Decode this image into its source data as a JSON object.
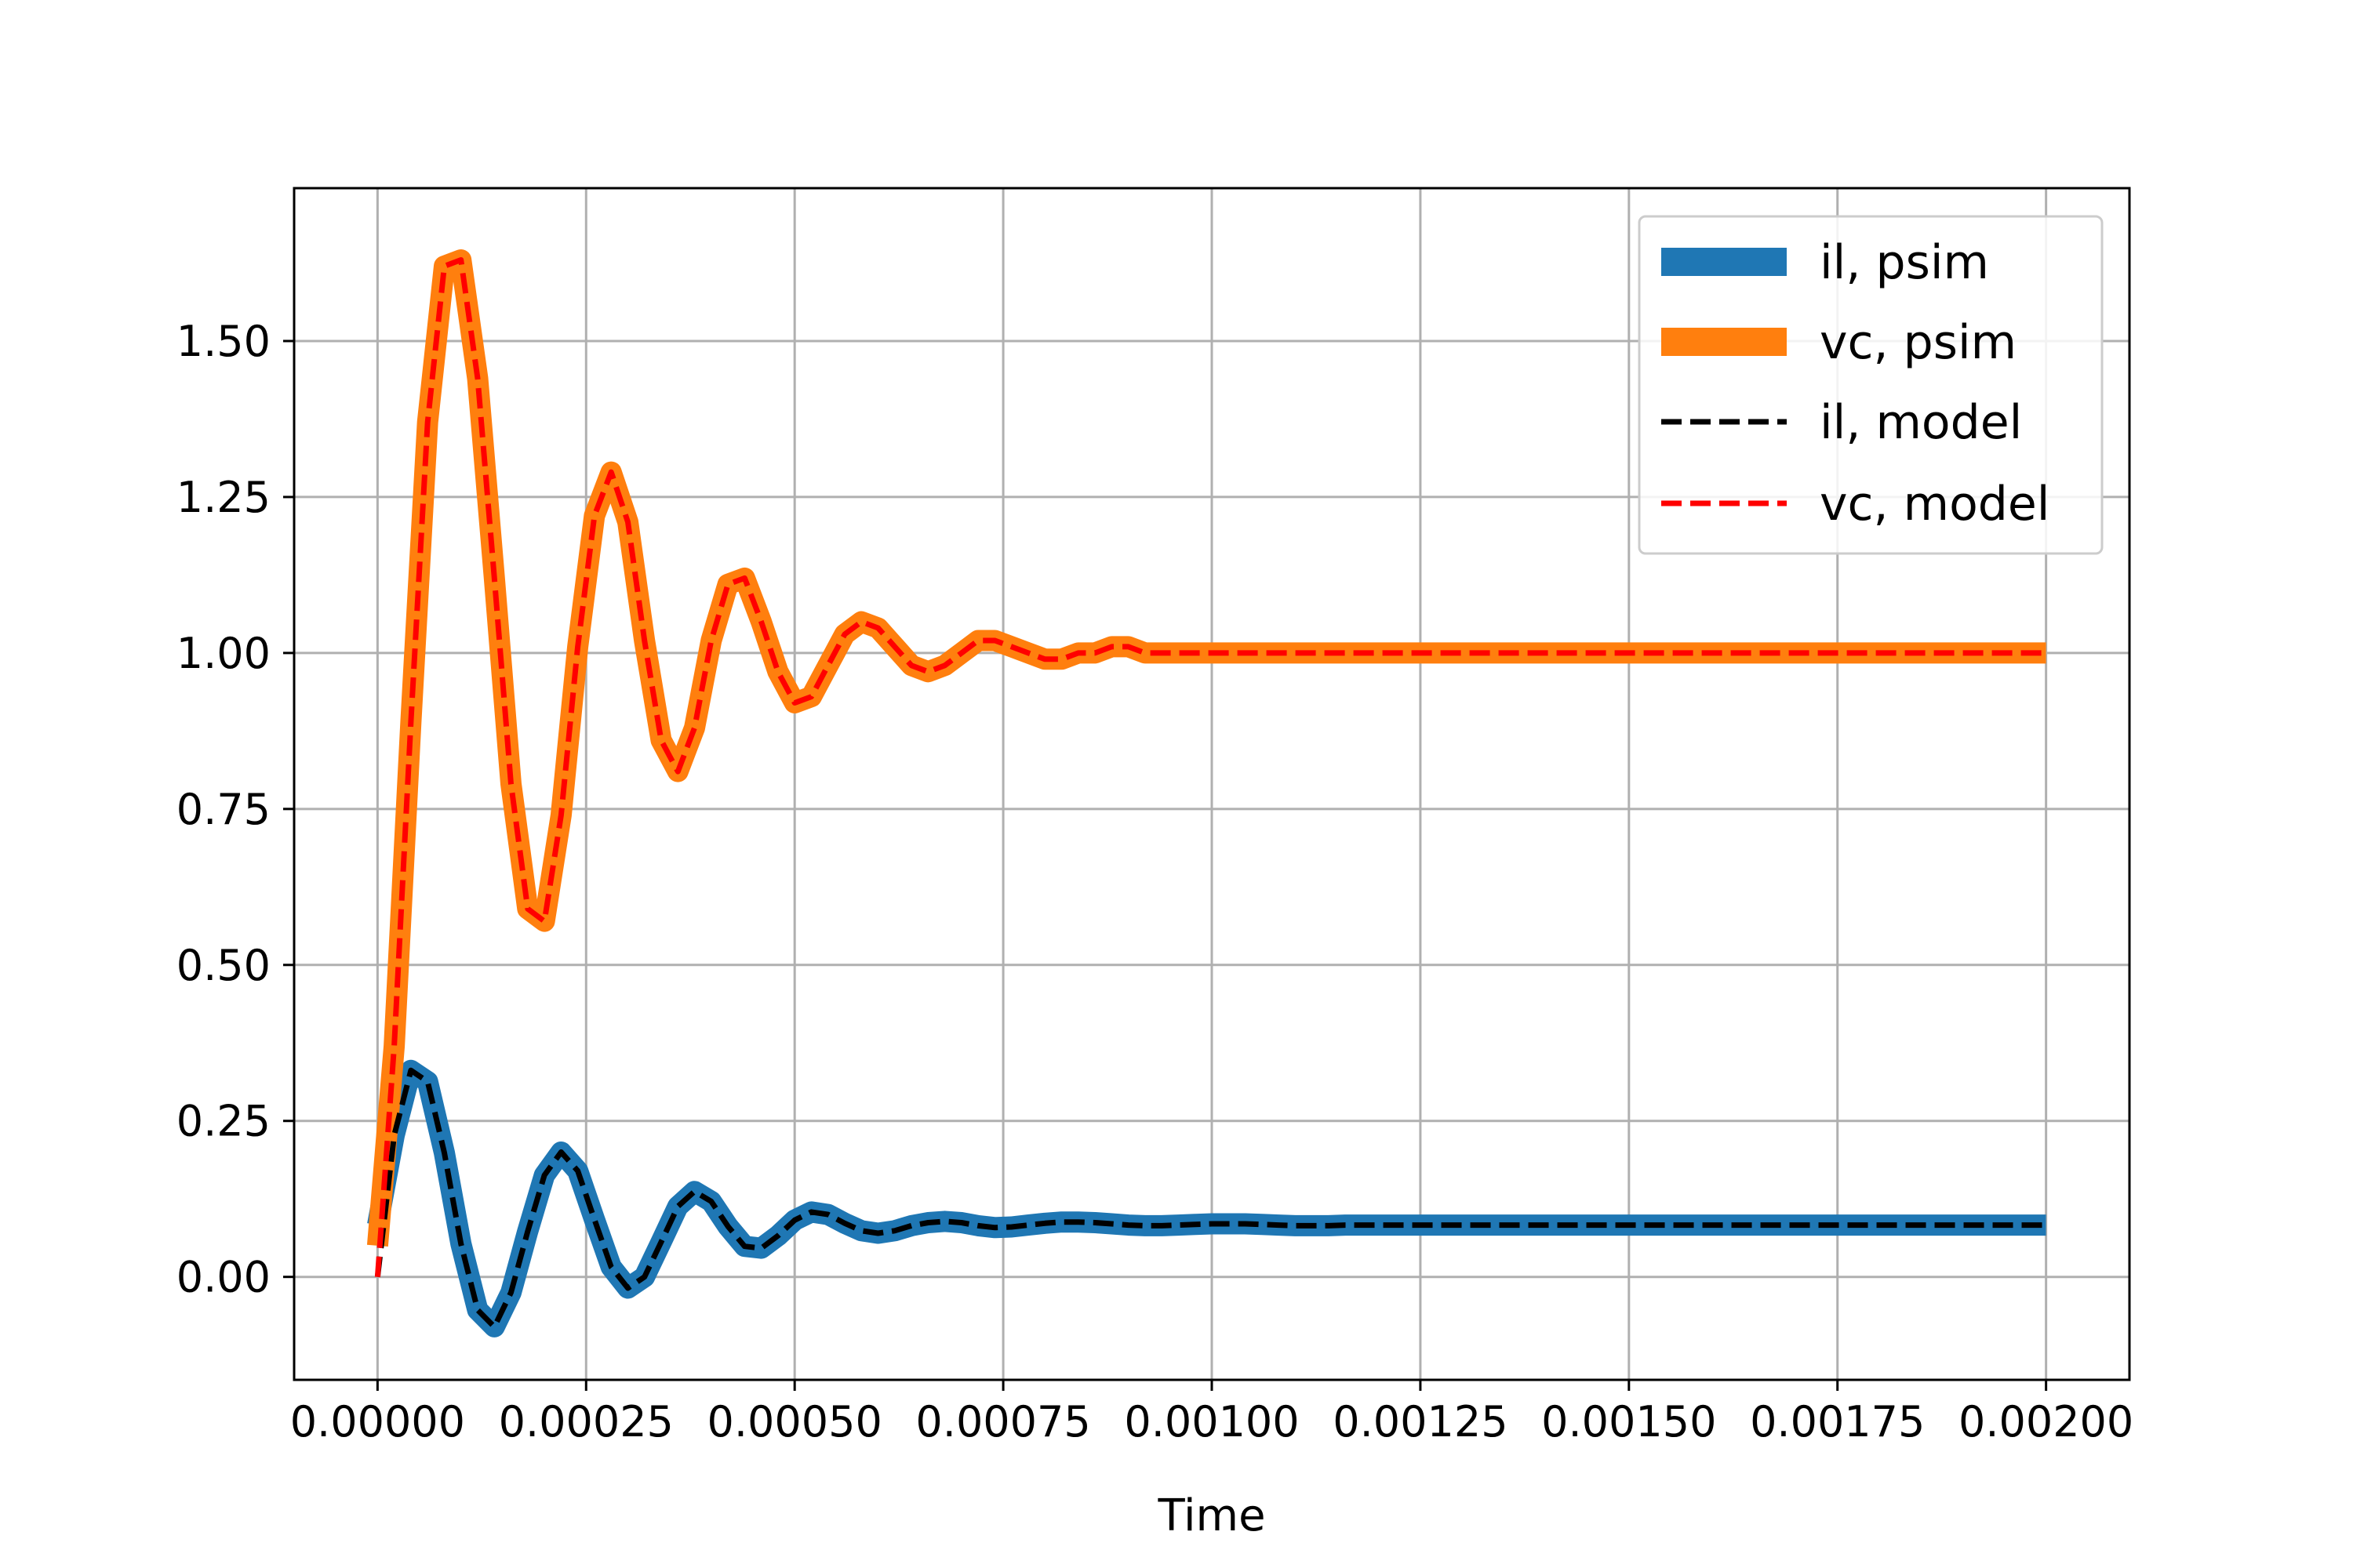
{
  "chart_data": {
    "type": "line",
    "title": "",
    "xlabel": "Time",
    "ylabel": "",
    "xlim": [
      -0.0001,
      0.0021
    ],
    "ylim": [
      -0.165,
      1.745
    ],
    "grid": true,
    "legend_position": "upper right",
    "x_ticks": [
      0,
      0.00025,
      0.0005,
      0.00075,
      0.001,
      0.00125,
      0.0015,
      0.00175,
      0.002
    ],
    "x_tick_labels": [
      "0.00000",
      "0.00025",
      "0.00050",
      "0.00075",
      "0.00100",
      "0.00125",
      "0.00150",
      "0.00175",
      "0.00200"
    ],
    "y_ticks": [
      0,
      0.25,
      0.5,
      0.75,
      1.0,
      1.25,
      1.5
    ],
    "y_tick_labels": [
      "0.00",
      "0.25",
      "0.50",
      "0.75",
      "1.00",
      "1.25",
      "1.50"
    ],
    "x": [
      0,
      2e-05,
      4e-05,
      6e-05,
      8e-05,
      0.0001,
      0.00012,
      0.00014,
      0.00016,
      0.00018,
      0.0002,
      0.00022,
      0.00024,
      0.00026,
      0.00028,
      0.0003,
      0.00032,
      0.00034,
      0.00036,
      0.00038,
      0.0004,
      0.00042,
      0.00044,
      0.00046,
      0.00048,
      0.0005,
      0.00052,
      0.00054,
      0.00056,
      0.00058,
      0.0006,
      0.00062,
      0.00064,
      0.00066,
      0.00068,
      0.0007,
      0.00072,
      0.00074,
      0.00076,
      0.00078,
      0.0008,
      0.00082,
      0.00084,
      0.00086,
      0.00088,
      0.0009,
      0.00092,
      0.00094,
      0.00096,
      0.00098,
      0.001,
      0.00102,
      0.00104,
      0.00106,
      0.00108,
      0.0011,
      0.00112,
      0.00114,
      0.00116,
      0.00118,
      0.0012,
      0.00122,
      0.00124,
      0.00126,
      0.00128,
      0.0013,
      0.00132,
      0.00134,
      0.00136,
      0.00138,
      0.0014,
      0.00142,
      0.00144,
      0.00146,
      0.00148,
      0.0015,
      0.00152,
      0.00154,
      0.00156,
      0.00158,
      0.0016,
      0.00162,
      0.00164,
      0.00166,
      0.00168,
      0.0017,
      0.00172,
      0.00174,
      0.00176,
      0.00178,
      0.0018,
      0.00182,
      0.00184,
      0.00186,
      0.00188,
      0.0019,
      0.00192,
      0.00194,
      0.00196,
      0.00198,
      0.002
    ],
    "series": [
      {
        "name": "il, psim",
        "color": "#1f77b4",
        "style": "solid-thick",
        "values": [
          0.083,
          0.227,
          0.331,
          0.313,
          0.199,
          0.053,
          -0.053,
          -0.08,
          -0.025,
          0.073,
          0.163,
          0.2,
          0.17,
          0.092,
          0.016,
          -0.018,
          0.0,
          0.056,
          0.113,
          0.137,
          0.121,
          0.081,
          0.049,
          0.046,
          0.066,
          0.091,
          0.104,
          0.1,
          0.086,
          0.074,
          0.07,
          0.074,
          0.082,
          0.087,
          0.089,
          0.087,
          0.082,
          0.079,
          0.08,
          0.083,
          0.086,
          0.088,
          0.088,
          0.087,
          0.085,
          0.083,
          0.082,
          0.082,
          0.083,
          0.084,
          0.085,
          0.085,
          0.085,
          0.084,
          0.083,
          0.082,
          0.082,
          0.082,
          0.083,
          0.083,
          0.083,
          0.083,
          0.083,
          0.083,
          0.083,
          0.083,
          0.083,
          0.083,
          0.083,
          0.083,
          0.083,
          0.083,
          0.083,
          0.083,
          0.083,
          0.083,
          0.083,
          0.083,
          0.083,
          0.083,
          0.083,
          0.083,
          0.083,
          0.083,
          0.083,
          0.083,
          0.083,
          0.083,
          0.083,
          0.083,
          0.083,
          0.083,
          0.083,
          0.083,
          0.083,
          0.083,
          0.083,
          0.083,
          0.083,
          0.083,
          0.083
        ]
      },
      {
        "name": "vc, psim",
        "color": "#ff7f0e",
        "style": "solid-thick",
        "values": [
          0.05,
          0.37,
          0.89,
          1.37,
          1.62,
          1.63,
          1.44,
          1.12,
          0.79,
          0.59,
          0.57,
          0.74,
          1.01,
          1.22,
          1.29,
          1.21,
          1.02,
          0.86,
          0.81,
          0.88,
          1.02,
          1.11,
          1.12,
          1.05,
          0.97,
          0.92,
          0.93,
          0.98,
          1.03,
          1.05,
          1.04,
          1.01,
          0.98,
          0.97,
          0.98,
          1.0,
          1.02,
          1.02,
          1.01,
          1.0,
          0.99,
          0.99,
          1.0,
          1.0,
          1.01,
          1.01,
          1.0,
          1.0,
          1.0,
          1.0,
          1.0,
          1.0,
          1.0,
          1.0,
          1.0,
          1.0,
          1.0,
          1.0,
          1.0,
          1.0,
          1.0,
          1.0,
          1.0,
          1.0,
          1.0,
          1.0,
          1.0,
          1.0,
          1.0,
          1.0,
          1.0,
          1.0,
          1.0,
          1.0,
          1.0,
          1.0,
          1.0,
          1.0,
          1.0,
          1.0,
          1.0,
          1.0,
          1.0,
          1.0,
          1.0,
          1.0,
          1.0,
          1.0,
          1.0,
          1.0,
          1.0,
          1.0,
          1.0,
          1.0,
          1.0,
          1.0,
          1.0,
          1.0,
          1.0,
          1.0,
          1.0
        ]
      },
      {
        "name": "il, model",
        "color": "#000000",
        "style": "dashed",
        "values": [
          0.0,
          0.227,
          0.331,
          0.313,
          0.199,
          0.053,
          -0.053,
          -0.08,
          -0.025,
          0.073,
          0.163,
          0.2,
          0.17,
          0.092,
          0.016,
          -0.018,
          0.0,
          0.056,
          0.113,
          0.137,
          0.121,
          0.081,
          0.049,
          0.046,
          0.066,
          0.091,
          0.104,
          0.1,
          0.086,
          0.074,
          0.07,
          0.074,
          0.082,
          0.087,
          0.089,
          0.087,
          0.082,
          0.079,
          0.08,
          0.083,
          0.086,
          0.088,
          0.088,
          0.087,
          0.085,
          0.083,
          0.082,
          0.082,
          0.083,
          0.084,
          0.085,
          0.085,
          0.085,
          0.084,
          0.083,
          0.082,
          0.082,
          0.082,
          0.083,
          0.083,
          0.083,
          0.083,
          0.083,
          0.083,
          0.083,
          0.083,
          0.083,
          0.083,
          0.083,
          0.083,
          0.083,
          0.083,
          0.083,
          0.083,
          0.083,
          0.083,
          0.083,
          0.083,
          0.083,
          0.083,
          0.083,
          0.083,
          0.083,
          0.083,
          0.083,
          0.083,
          0.083,
          0.083,
          0.083,
          0.083,
          0.083,
          0.083,
          0.083,
          0.083,
          0.083,
          0.083,
          0.083,
          0.083,
          0.083,
          0.083,
          0.083
        ]
      },
      {
        "name": "vc, model",
        "color": "#ff0000",
        "style": "dashed",
        "values": [
          0.0,
          0.37,
          0.89,
          1.37,
          1.62,
          1.63,
          1.44,
          1.12,
          0.79,
          0.59,
          0.57,
          0.74,
          1.01,
          1.22,
          1.29,
          1.21,
          1.02,
          0.86,
          0.81,
          0.88,
          1.02,
          1.11,
          1.12,
          1.05,
          0.97,
          0.92,
          0.93,
          0.98,
          1.03,
          1.05,
          1.04,
          1.01,
          0.98,
          0.97,
          0.98,
          1.0,
          1.02,
          1.02,
          1.01,
          1.0,
          0.99,
          0.99,
          1.0,
          1.0,
          1.01,
          1.01,
          1.0,
          1.0,
          1.0,
          1.0,
          1.0,
          1.0,
          1.0,
          1.0,
          1.0,
          1.0,
          1.0,
          1.0,
          1.0,
          1.0,
          1.0,
          1.0,
          1.0,
          1.0,
          1.0,
          1.0,
          1.0,
          1.0,
          1.0,
          1.0,
          1.0,
          1.0,
          1.0,
          1.0,
          1.0,
          1.0,
          1.0,
          1.0,
          1.0,
          1.0,
          1.0,
          1.0,
          1.0,
          1.0,
          1.0,
          1.0,
          1.0,
          1.0,
          1.0,
          1.0,
          1.0,
          1.0,
          1.0,
          1.0,
          1.0,
          1.0,
          1.0,
          1.0,
          1.0,
          1.0,
          1.0
        ]
      }
    ]
  }
}
